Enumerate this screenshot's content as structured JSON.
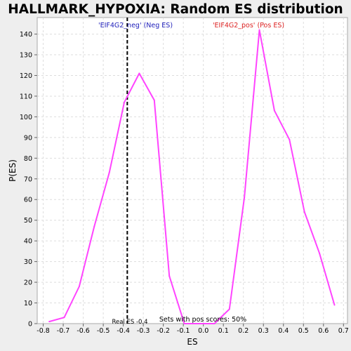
{
  "chart_data": {
    "type": "line",
    "title": "HALLMARK_HYPOXIA: Random ES distribution",
    "xlabel": "ES",
    "ylabel": "P(ES)",
    "xlim": [
      -0.83,
      0.72
    ],
    "ylim": [
      0,
      148
    ],
    "xticks": [
      -0.8,
      -0.7,
      -0.6,
      -0.5,
      -0.4,
      -0.3,
      -0.2,
      -0.1,
      0.0,
      0.1,
      0.2,
      0.3,
      0.4,
      0.5,
      0.6,
      0.7
    ],
    "xtick_labels": [
      "-0.8",
      "-0.7",
      "-0.6",
      "-0.5",
      "-0.4",
      "-0.3",
      "-0.2",
      "-0.1",
      "0.0",
      "0.1",
      "0.2",
      "0.3",
      "0.4",
      "0.5",
      "0.6",
      "0.7"
    ],
    "yticks": [
      0,
      10,
      20,
      30,
      40,
      50,
      60,
      70,
      80,
      90,
      100,
      110,
      120,
      130,
      140
    ],
    "grid": true,
    "line_color": "#ff44ff",
    "series": [
      {
        "x": [
          -0.77,
          -0.695,
          -0.62,
          -0.545,
          -0.47,
          -0.395,
          -0.32,
          -0.245,
          -0.17,
          -0.095,
          -0.02,
          0.055,
          0.13,
          0.205,
          0.28,
          0.355,
          0.43,
          0.505,
          0.58,
          0.655
        ],
        "values": [
          1,
          3,
          18,
          47,
          73,
          107,
          121,
          108,
          23,
          0,
          0,
          0,
          7,
          61,
          142,
          103,
          89,
          54,
          34,
          9
        ]
      }
    ],
    "real_es_line": {
      "x": -0.38,
      "label": "Real ES -0.4",
      "color": "#000000"
    },
    "annotations": {
      "neg_label": "'EIF4G2_neg' (Neg ES)",
      "neg_color": "#2222bb",
      "pos_label": "'EIF4G2_pos' (Pos ES)",
      "pos_color": "#dd2222",
      "footer": "Sets with pos scores: 50%"
    }
  }
}
